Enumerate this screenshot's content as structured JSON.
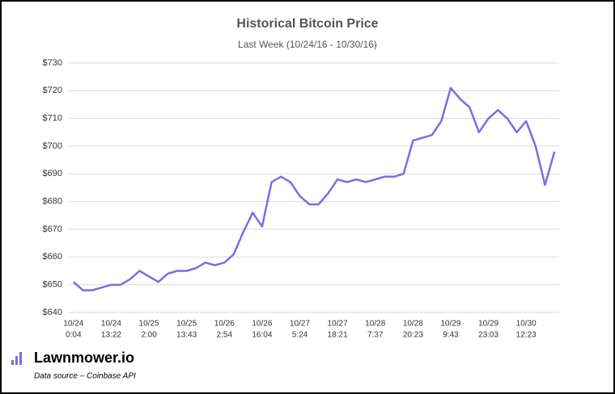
{
  "chart_data": {
    "type": "line",
    "title": "Historical Bitcoin Price",
    "subtitle": "Last Week (10/24/16 - 10/30/16)",
    "categories": [
      [
        "10/24",
        "0:04"
      ],
      null,
      null,
      null,
      [
        "10/24",
        "13:22"
      ],
      null,
      null,
      null,
      [
        "10/25",
        "2:00"
      ],
      null,
      null,
      null,
      [
        "10/25",
        "13:43"
      ],
      null,
      null,
      null,
      [
        "10/26",
        "2:54"
      ],
      null,
      null,
      null,
      [
        "10/26",
        "16:04"
      ],
      null,
      null,
      null,
      [
        "10/27",
        "5:24"
      ],
      null,
      null,
      null,
      [
        "10/27",
        "18:21"
      ],
      null,
      null,
      null,
      [
        "10/28",
        "7:37"
      ],
      null,
      null,
      null,
      [
        "10/28",
        "20:23"
      ],
      null,
      null,
      null,
      [
        "10/29",
        "9:43"
      ],
      null,
      null,
      null,
      [
        "10/29",
        "23:03"
      ],
      null,
      null,
      null,
      [
        "10/30",
        "12:23"
      ],
      null,
      null,
      null
    ],
    "values": [
      651,
      648,
      648,
      649,
      650,
      650,
      652,
      655,
      653,
      651,
      654,
      655,
      655,
      656,
      658,
      657,
      658,
      661,
      669,
      676,
      671,
      687,
      689,
      687,
      682,
      679,
      679,
      683,
      688,
      687,
      688,
      687,
      688,
      689,
      689,
      690,
      702,
      703,
      704,
      709,
      721,
      717,
      714,
      705,
      710,
      713,
      710,
      705,
      709,
      700,
      686,
      698
    ],
    "color": "#8468e6",
    "ylim": [
      640,
      730
    ],
    "yticks": [
      {
        "value": 640,
        "label": "$640"
      },
      {
        "value": 650,
        "label": "$650"
      },
      {
        "value": 660,
        "label": "$660"
      },
      {
        "value": 670,
        "label": "$670"
      },
      {
        "value": 680,
        "label": "$680"
      },
      {
        "value": 690,
        "label": "$690"
      },
      {
        "value": 700,
        "label": "$700"
      },
      {
        "value": 710,
        "label": "$710"
      },
      {
        "value": 720,
        "label": "$720"
      },
      {
        "value": 730,
        "label": "$730"
      }
    ],
    "grid": true
  },
  "footer": {
    "brand": "Lawnmower.io",
    "source": "Data source – Coinbase API"
  }
}
